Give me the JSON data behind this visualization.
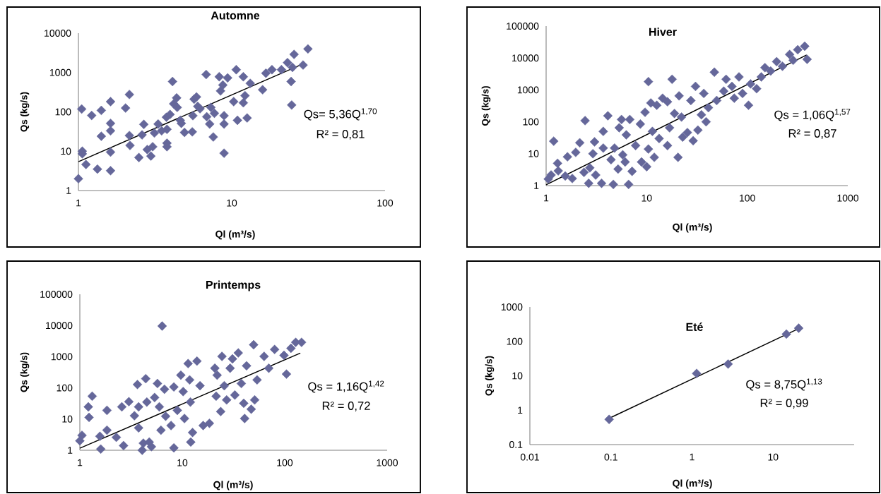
{
  "chart_data": [
    {
      "type": "scatter",
      "title": "Automne",
      "xlabel": "Ql (m³/s)",
      "ylabel": "Qs (kg/s)",
      "log": "xy",
      "xlim": [
        1,
        100
      ],
      "ylim": [
        1,
        10000
      ],
      "xticks": [
        1,
        10,
        100
      ],
      "yticks": [
        1,
        10,
        100,
        1000,
        10000
      ],
      "annotations": [
        "Qs= 5,36Q$^{1,70}$",
        "R² = 0,81"
      ],
      "series": [
        {
          "type": "scatter",
          "color": "#65679a",
          "marker": "diamond",
          "x": [
            1.0,
            1.05,
            1.06,
            1.06,
            1.12,
            1.22,
            1.33,
            1.41,
            1.41,
            1.62,
            1.62,
            1.62,
            1.62,
            1.62,
            2.03,
            2.15,
            2.15,
            2.17,
            2.48,
            2.6,
            2.67,
            2.81,
            2.97,
            3.05,
            3.13,
            3.31,
            3.49,
            3.75,
            3.78,
            3.78,
            3.78,
            3.96,
            4.11,
            4.18,
            4.37,
            4.41,
            4.62,
            4.69,
            4.92,
            5.53,
            5.58,
            5.68,
            5.89,
            6.0,
            6.21,
            6.81,
            6.87,
            7.18,
            7.31,
            7.58,
            7.71,
            8.29,
            8.45,
            8.75,
            8.91,
            8.91,
            8.91,
            9.4,
            10.3,
            10.7,
            10.9,
            11.9,
            11.9,
            12.2,
            12.6,
            13.2,
            15.9,
            16.7,
            18.3,
            21.1,
            23.1,
            24.4,
            24.6,
            24.9,
            25.5,
            29.2,
            31.4
          ],
          "values": [
            2.0,
            118,
            10,
            8.6,
            4.6,
            81,
            3.5,
            109,
            24,
            182,
            51,
            33,
            9.5,
            3.2,
            125,
            276,
            25,
            14,
            6.9,
            26,
            48,
            11,
            7.5,
            13,
            29,
            49,
            33,
            73,
            36,
            16,
            13,
            86,
            590,
            160,
            226,
            130,
            61,
            51,
            30,
            31,
            80,
            210,
            240,
            138,
            120,
            890,
            75,
            49,
            130,
            23,
            92,
            780,
            340,
            480,
            49,
            80,
            8.9,
            730,
            182,
            1180,
            61,
            780,
            170,
            258,
            70,
            530,
            365,
            960,
            1180,
            1180,
            1780,
            590,
            149,
            1350,
            2890,
            1550,
            3980
          ]
        },
        {
          "type": "line",
          "color": "#000000",
          "x": [
            1,
            30
          ],
          "values": [
            5.4,
            1740
          ]
        }
      ]
    },
    {
      "type": "scatter",
      "title": "Hiver",
      "xlabel": "Ql (m³/s)",
      "ylabel": "Qs (kg/s)",
      "log": "xy",
      "xlim": [
        1,
        1000
      ],
      "ylim": [
        1,
        100000
      ],
      "xticks": [
        1,
        10,
        100,
        1000
      ],
      "yticks": [
        1,
        10,
        100,
        1000,
        10000,
        100000
      ],
      "annotations": [
        "Qs = 1,06Q$^{1,57}$",
        "R² = 0,87"
      ],
      "series": [
        {
          "type": "scatter",
          "color": "#65679a",
          "marker": "diamond",
          "x": [
            1.05,
            1.12,
            1.19,
            1.3,
            1.32,
            1.55,
            1.63,
            1.82,
            1.97,
            2.16,
            2.44,
            2.38,
            2.65,
            2.72,
            2.92,
            3.03,
            3.11,
            3.56,
            3.7,
            3.7,
            4.11,
            4.42,
            4.66,
            4.79,
            5.19,
            5.33,
            5.62,
            5.78,
            6.1,
            6.27,
            6.61,
            6.79,
            7.16,
            7.76,
            8.65,
            8.89,
            9.63,
            10,
            10.4,
            10.4,
            11.0,
            11.4,
            11.9,
            12.6,
            13.3,
            14.4,
            16.1,
            16.1,
            16.9,
            17.9,
            18.9,
            20.5,
            21.0,
            22.2,
            22.8,
            25.4,
            27.5,
            29.0,
            30.6,
            32.3,
            35.0,
            37.0,
            39.0,
            41.1,
            47.1,
            49.7,
            58.4,
            61.6,
            70.5,
            74.3,
            82.8,
            89.8,
            103,
            108,
            124,
            138,
            150,
            171,
            196,
            224,
            264,
            286,
            318,
            373,
            394
          ],
          "values": [
            1.61,
            2.15,
            24.7,
            5.0,
            2.9,
            2.0,
            8.0,
            1.67,
            11,
            22,
            109,
            2.6,
            1.18,
            3.6,
            10,
            23.5,
            2.15,
            1.18,
            50,
            15,
            154,
            6.5,
            1.09,
            15,
            3.3,
            65,
            118,
            9.2,
            5.5,
            39,
            1.09,
            118,
            2.8,
            18,
            85,
            5.5,
            199,
            3.9,
            1820,
            14,
            390,
            50,
            7.7,
            330,
            30,
            550,
            425,
            18,
            65,
            2150,
            182,
            7.7,
            650,
            141,
            33,
            46,
            465,
            25.5,
            1290,
            55,
            166,
            775,
            100,
            277,
            3600,
            465,
            915,
            2150,
            1290,
            550,
            2550,
            775,
            330,
            1540,
            1090,
            2550,
            5000,
            3900,
            7700,
            5500,
            12900,
            8500,
            18200,
            23400,
            9100
          ]
        },
        {
          "type": "line",
          "color": "#000000",
          "x": [
            1,
            390
          ],
          "values": [
            1.06,
            12500
          ]
        }
      ]
    },
    {
      "type": "scatter",
      "title": "Printemps",
      "xlabel": "Ql (m³/s)",
      "ylabel": "Qs (kg/s)",
      "log": "xy",
      "xlim": [
        1,
        1000
      ],
      "ylim": [
        1,
        100000
      ],
      "xticks": [
        1,
        10,
        100,
        1000
      ],
      "yticks": [
        1,
        10,
        100,
        1000,
        10000,
        100000
      ],
      "annotations": [
        "Qs = 1,16Q$^{1,42}$",
        "R² = 0,72"
      ],
      "series": [
        {
          "type": "scatter",
          "color": "#65679a",
          "marker": "diamond",
          "x": [
            1.0,
            1.05,
            1.21,
            1.23,
            1.32,
            1.6,
            1.57,
            1.84,
            1.84,
            2.27,
            2.57,
            2.67,
            3.01,
            3.41,
            3.65,
            3.75,
            3.75,
            4.06,
            4.17,
            4.4,
            4.51,
            4.76,
            5.0,
            5.37,
            5.72,
            5.97,
            6.36,
            6.19,
            6.7,
            6.88,
            7.77,
            8.28,
            8.28,
            8.95,
            9.68,
            10.2,
            10.5,
            11.4,
            11.8,
            12.0,
            12.1,
            12.6,
            13.9,
            14.9,
            16.0,
            18.4,
            20.8,
            21.4,
            21.9,
            23.7,
            24.4,
            25.7,
            27.1,
            29.3,
            30.9,
            32.6,
            35.2,
            37.7,
            39.8,
            40.6,
            42.4,
            47.1,
            49.7,
            50.9,
            53.7,
            62.9,
            69.9,
            79.7,
            104,
            98.4,
            115,
            128,
            146
          ],
          "values": [
            2.0,
            3.0,
            24.6,
            11.3,
            54,
            1.09,
            2.8,
            19,
            4.4,
            2.6,
            24.6,
            1.41,
            36,
            12.8,
            128,
            24.6,
            5.2,
            1.0,
            1.68,
            197,
            35,
            1.83,
            1.3,
            49,
            138,
            24.6,
            9600,
            4.4,
            90,
            12.3,
            6.2,
            107,
            1.19,
            19,
            255,
            76,
            10.4,
            600,
            180,
            35,
            1.83,
            3.7,
            720,
            117,
            6.2,
            7.3,
            427,
            54,
            255,
            17.4,
            1020,
            117,
            41,
            427,
            850,
            59,
            1320,
            138,
            32,
            10.4,
            510,
            20.7,
            2410,
            41,
            180,
            1020,
            427,
            1700,
            276,
            1110,
            1860,
            2880,
            2880
          ]
        },
        {
          "type": "line",
          "color": "#000000",
          "x": [
            1,
            142
          ],
          "values": [
            1.16,
            1300
          ]
        }
      ]
    },
    {
      "type": "scatter",
      "title": "Eté",
      "xlabel": "Ql (m³/s)",
      "ylabel": "Qs (kg/s)",
      "log": "xy",
      "xlim": [
        0.01,
        100
      ],
      "ylim": [
        0.1,
        1000
      ],
      "xticks": [
        0.01,
        0.1,
        1,
        10
      ],
      "yticks": [
        0.1,
        1,
        10,
        100,
        1000
      ],
      "annotations": [
        "Qs = 8,75Q$^{1,13}$",
        "R² = 0,99"
      ],
      "series": [
        {
          "type": "scatter",
          "color": "#65679a",
          "marker": "diamond",
          "x": [
            0.095,
            1.14,
            2.79,
            14.6,
            20.7
          ],
          "values": [
            0.54,
            11.7,
            22,
            163,
            242
          ]
        },
        {
          "type": "line",
          "color": "#000000",
          "x": [
            0.095,
            20.7
          ],
          "values": [
            0.58,
            235
          ]
        }
      ]
    }
  ]
}
